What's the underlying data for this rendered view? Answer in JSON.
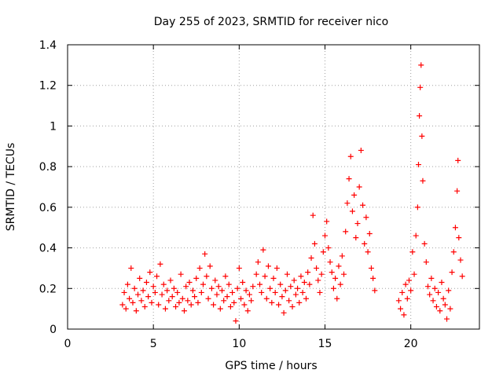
{
  "chart_data": {
    "type": "scatter",
    "title": "Day 255 of 2023, SRMTID for receiver nico",
    "xlabel": "GPS time / hours",
    "ylabel": "SRMTID / TECUs",
    "xlim": [
      0,
      24
    ],
    "ylim": [
      0,
      1.4
    ],
    "x_ticks": [
      0,
      5,
      10,
      15,
      20
    ],
    "x_tick_labels": [
      "0",
      "5",
      "10",
      "15",
      "20"
    ],
    "y_ticks": [
      0,
      0.2,
      0.4,
      0.6,
      0.8,
      1.0,
      1.2,
      1.4
    ],
    "y_tick_labels": [
      "0",
      "0.2",
      "0.4",
      "0.6",
      "0.8",
      "1",
      "1.2",
      "1.4"
    ],
    "grid": true,
    "marker": "+",
    "series": [
      {
        "name": "SRMTID",
        "color": "#ff0000",
        "points": [
          [
            3.2,
            0.12
          ],
          [
            3.3,
            0.18
          ],
          [
            3.4,
            0.1
          ],
          [
            3.5,
            0.22
          ],
          [
            3.6,
            0.15
          ],
          [
            3.7,
            0.3
          ],
          [
            3.8,
            0.13
          ],
          [
            3.9,
            0.2
          ],
          [
            4.0,
            0.09
          ],
          [
            4.1,
            0.17
          ],
          [
            4.2,
            0.25
          ],
          [
            4.3,
            0.14
          ],
          [
            4.4,
            0.19
          ],
          [
            4.5,
            0.11
          ],
          [
            4.6,
            0.23
          ],
          [
            4.7,
            0.16
          ],
          [
            4.8,
            0.28
          ],
          [
            4.9,
            0.13
          ],
          [
            5.0,
            0.21
          ],
          [
            5.1,
            0.18
          ],
          [
            5.2,
            0.26
          ],
          [
            5.3,
            0.12
          ],
          [
            5.4,
            0.32
          ],
          [
            5.5,
            0.17
          ],
          [
            5.6,
            0.22
          ],
          [
            5.7,
            0.1
          ],
          [
            5.8,
            0.19
          ],
          [
            5.9,
            0.14
          ],
          [
            6.0,
            0.24
          ],
          [
            6.1,
            0.16
          ],
          [
            6.2,
            0.2
          ],
          [
            6.3,
            0.11
          ],
          [
            6.4,
            0.18
          ],
          [
            6.5,
            0.13
          ],
          [
            6.6,
            0.27
          ],
          [
            6.7,
            0.15
          ],
          [
            6.8,
            0.09
          ],
          [
            6.9,
            0.21
          ],
          [
            7.0,
            0.14
          ],
          [
            7.1,
            0.23
          ],
          [
            7.2,
            0.12
          ],
          [
            7.3,
            0.19
          ],
          [
            7.4,
            0.16
          ],
          [
            7.5,
            0.25
          ],
          [
            7.6,
            0.13
          ],
          [
            7.7,
            0.3
          ],
          [
            7.8,
            0.18
          ],
          [
            7.9,
            0.22
          ],
          [
            8.0,
            0.37
          ],
          [
            8.1,
            0.26
          ],
          [
            8.2,
            0.15
          ],
          [
            8.3,
            0.31
          ],
          [
            8.4,
            0.2
          ],
          [
            8.5,
            0.12
          ],
          [
            8.6,
            0.24
          ],
          [
            8.7,
            0.17
          ],
          [
            8.8,
            0.21
          ],
          [
            8.9,
            0.1
          ],
          [
            9.0,
            0.19
          ],
          [
            9.1,
            0.14
          ],
          [
            9.2,
            0.26
          ],
          [
            9.3,
            0.16
          ],
          [
            9.4,
            0.22
          ],
          [
            9.5,
            0.11
          ],
          [
            9.6,
            0.18
          ],
          [
            9.7,
            0.13
          ],
          [
            9.8,
            0.04
          ],
          [
            9.9,
            0.2
          ],
          [
            10.0,
            0.3
          ],
          [
            10.1,
            0.15
          ],
          [
            10.2,
            0.23
          ],
          [
            10.3,
            0.12
          ],
          [
            10.4,
            0.19
          ],
          [
            10.5,
            0.09
          ],
          [
            10.6,
            0.17
          ],
          [
            10.7,
            0.14
          ],
          [
            10.8,
            0.21
          ],
          [
            11.0,
            0.27
          ],
          [
            11.1,
            0.33
          ],
          [
            11.2,
            0.22
          ],
          [
            11.3,
            0.18
          ],
          [
            11.4,
            0.39
          ],
          [
            11.5,
            0.26
          ],
          [
            11.6,
            0.15
          ],
          [
            11.7,
            0.31
          ],
          [
            11.8,
            0.2
          ],
          [
            11.9,
            0.13
          ],
          [
            12.0,
            0.25
          ],
          [
            12.1,
            0.18
          ],
          [
            12.2,
            0.3
          ],
          [
            12.3,
            0.12
          ],
          [
            12.4,
            0.22
          ],
          [
            12.5,
            0.16
          ],
          [
            12.6,
            0.08
          ],
          [
            12.7,
            0.19
          ],
          [
            12.8,
            0.27
          ],
          [
            12.9,
            0.14
          ],
          [
            13.0,
            0.21
          ],
          [
            13.1,
            0.11
          ],
          [
            13.2,
            0.24
          ],
          [
            13.3,
            0.17
          ],
          [
            13.4,
            0.2
          ],
          [
            13.5,
            0.13
          ],
          [
            13.6,
            0.26
          ],
          [
            13.7,
            0.18
          ],
          [
            13.8,
            0.23
          ],
          [
            13.9,
            0.15
          ],
          [
            14.0,
            0.28
          ],
          [
            14.1,
            0.22
          ],
          [
            14.2,
            0.35
          ],
          [
            14.3,
            0.56
          ],
          [
            14.4,
            0.42
          ],
          [
            14.5,
            0.3
          ],
          [
            14.6,
            0.24
          ],
          [
            14.7,
            0.18
          ],
          [
            14.8,
            0.27
          ],
          [
            14.9,
            0.38
          ],
          [
            15.0,
            0.46
          ],
          [
            15.1,
            0.53
          ],
          [
            15.2,
            0.4
          ],
          [
            15.3,
            0.33
          ],
          [
            15.4,
            0.28
          ],
          [
            15.5,
            0.2
          ],
          [
            15.6,
            0.25
          ],
          [
            15.7,
            0.15
          ],
          [
            15.8,
            0.31
          ],
          [
            15.9,
            0.22
          ],
          [
            16.0,
            0.36
          ],
          [
            16.1,
            0.27
          ],
          [
            16.2,
            0.48
          ],
          [
            16.3,
            0.62
          ],
          [
            16.4,
            0.74
          ],
          [
            16.5,
            0.85
          ],
          [
            16.6,
            0.58
          ],
          [
            16.7,
            0.66
          ],
          [
            16.8,
            0.45
          ],
          [
            16.9,
            0.52
          ],
          [
            17.0,
            0.7
          ],
          [
            17.1,
            0.88
          ],
          [
            17.2,
            0.61
          ],
          [
            17.3,
            0.42
          ],
          [
            17.4,
            0.55
          ],
          [
            17.5,
            0.38
          ],
          [
            17.6,
            0.47
          ],
          [
            17.7,
            0.3
          ],
          [
            17.8,
            0.25
          ],
          [
            17.9,
            0.19
          ],
          [
            19.3,
            0.14
          ],
          [
            19.4,
            0.1
          ],
          [
            19.5,
            0.18
          ],
          [
            19.6,
            0.07
          ],
          [
            19.7,
            0.22
          ],
          [
            19.8,
            0.15
          ],
          [
            19.9,
            0.24
          ],
          [
            20.0,
            0.19
          ],
          [
            20.1,
            0.38
          ],
          [
            20.2,
            0.27
          ],
          [
            20.3,
            0.46
          ],
          [
            20.4,
            0.6
          ],
          [
            20.45,
            0.81
          ],
          [
            20.5,
            1.05
          ],
          [
            20.55,
            1.19
          ],
          [
            20.6,
            1.3
          ],
          [
            20.65,
            0.95
          ],
          [
            20.7,
            0.73
          ],
          [
            20.8,
            0.42
          ],
          [
            20.9,
            0.33
          ],
          [
            21.0,
            0.21
          ],
          [
            21.1,
            0.17
          ],
          [
            21.2,
            0.25
          ],
          [
            21.3,
            0.14
          ],
          [
            21.4,
            0.2
          ],
          [
            21.5,
            0.11
          ],
          [
            21.6,
            0.18
          ],
          [
            21.7,
            0.09
          ],
          [
            21.8,
            0.23
          ],
          [
            21.9,
            0.15
          ],
          [
            22.0,
            0.12
          ],
          [
            22.1,
            0.05
          ],
          [
            22.2,
            0.19
          ],
          [
            22.3,
            0.1
          ],
          [
            22.4,
            0.28
          ],
          [
            22.5,
            0.38
          ],
          [
            22.6,
            0.5
          ],
          [
            22.7,
            0.68
          ],
          [
            22.75,
            0.83
          ],
          [
            22.8,
            0.45
          ],
          [
            22.9,
            0.34
          ],
          [
            23.0,
            0.26
          ]
        ]
      }
    ]
  }
}
